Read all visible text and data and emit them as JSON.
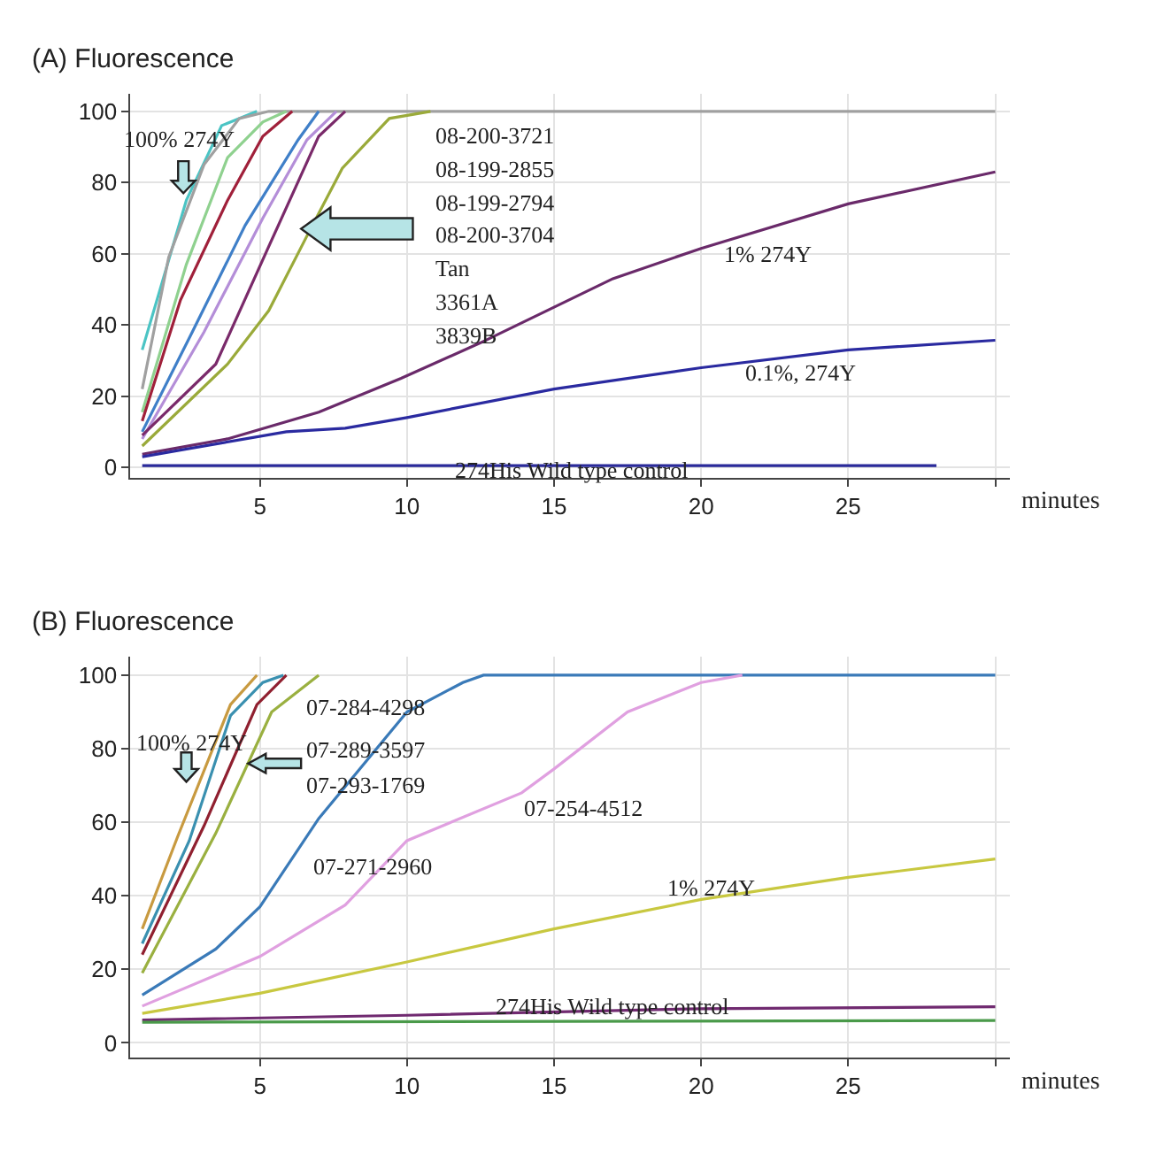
{
  "chart_data": [
    {
      "type": "line",
      "title": "(A) Fluorescence",
      "xlabel": "minutes",
      "xlim": [
        0.6,
        30.5
      ],
      "xticks": [
        5,
        10,
        15,
        20,
        25,
        {
          "value": 30,
          "label": null
        }
      ],
      "ylim": [
        -3,
        105
      ],
      "yticks": [
        0,
        20,
        40,
        60,
        80,
        100
      ],
      "grid": true,
      "series": [
        {
          "color": "#4bc4c4",
          "x": [
            1,
            2.5,
            3.7,
            4.9
          ],
          "values": [
            33,
            75,
            96,
            100
          ]
        },
        {
          "color": "#a0a0a0",
          "x": [
            1,
            1.9,
            3.1,
            4.3,
            5.3,
            30
          ],
          "values": [
            22,
            59,
            85,
            98,
            100,
            100
          ]
        },
        {
          "color": "#8fd18f",
          "x": [
            1,
            2.5,
            3.9,
            5.1,
            5.9
          ],
          "values": [
            15.5,
            57,
            87,
            97,
            100
          ]
        },
        {
          "color": "#a0203a",
          "x": [
            1,
            2.3,
            3.9,
            5.1,
            6.1
          ],
          "values": [
            13,
            47,
            75,
            93,
            100
          ]
        },
        {
          "color": "#3f7fc8",
          "x": [
            1,
            2.7,
            4.5,
            6.3,
            7
          ],
          "values": [
            10,
            38,
            68,
            92,
            100
          ]
        },
        {
          "color": "#b48ed8",
          "x": [
            1,
            3.1,
            5.1,
            6.6,
            7.6
          ],
          "values": [
            8,
            38,
            70,
            92,
            100
          ]
        },
        {
          "color": "#7a2a6a",
          "x": [
            1,
            3.5,
            5.3,
            7,
            7.9
          ],
          "values": [
            9,
            29,
            62,
            93,
            100
          ]
        },
        {
          "color": "#9aaa3a",
          "x": [
            1,
            3.9,
            5.3,
            6.6,
            7.8,
            9.4,
            10.8
          ],
          "values": [
            6,
            29,
            44,
            65,
            84,
            98,
            100
          ]
        },
        {
          "color": "#6a2a6a",
          "x": [
            1,
            3.9,
            7,
            9.8,
            12.5,
            15,
            17,
            20,
            25,
            30
          ],
          "values": [
            3.7,
            8,
            15.5,
            25,
            35,
            45,
            53,
            61.5,
            74,
            83
          ]
        },
        {
          "color": "#2a2aa0",
          "x": [
            1,
            5.9,
            7.9,
            10,
            15,
            20,
            25,
            30
          ],
          "values": [
            3,
            10,
            11,
            14,
            22,
            28,
            33,
            35.7
          ]
        },
        {
          "color": "#2a2a9a",
          "x": [
            1,
            28
          ],
          "values": [
            0.5,
            0.5
          ]
        }
      ],
      "annotations": [
        "100% 274Y",
        "08-200-3721",
        "08-199-2855",
        "08-199-2794",
        "08-200-3704",
        "Tan",
        "3361A",
        "3839B",
        "1% 274Y",
        "0.1%, 274Y",
        "274His Wild type control"
      ]
    },
    {
      "type": "line",
      "title": "(B) Fluorescence",
      "xlabel": "minutes",
      "xlim": [
        0.6,
        30.5
      ],
      "xticks": [
        5,
        10,
        15,
        20,
        25,
        {
          "value": 30,
          "label": null
        }
      ],
      "ylim": [
        -4,
        105
      ],
      "yticks": [
        0,
        20,
        40,
        60,
        80,
        100
      ],
      "grid": true,
      "series": [
        {
          "color": "#c89a40",
          "x": [
            1,
            2.2,
            4,
            4.9
          ],
          "values": [
            31,
            56,
            92,
            100
          ]
        },
        {
          "color": "#3a90b0",
          "x": [
            1,
            2.6,
            4,
            5.1,
            5.8
          ],
          "values": [
            27,
            55,
            89,
            98,
            100
          ]
        },
        {
          "color": "#902030",
          "x": [
            1,
            3.1,
            4.9,
            5.9
          ],
          "values": [
            24,
            59,
            92,
            100
          ]
        },
        {
          "color": "#9ab040",
          "x": [
            1,
            3.5,
            5.4,
            7
          ],
          "values": [
            19,
            57,
            90,
            100
          ]
        },
        {
          "color": "#3a7ab8",
          "x": [
            1,
            3.5,
            5,
            7,
            10,
            11.9,
            12.6,
            30
          ],
          "values": [
            13,
            25.5,
            37,
            61,
            90,
            98,
            100,
            100
          ]
        },
        {
          "color": "#e0a0e0",
          "x": [
            1,
            5,
            7.9,
            10,
            13.9,
            15,
            17.5,
            20,
            21.4
          ],
          "values": [
            10,
            23.5,
            37.5,
            55,
            68,
            74.5,
            90,
            98,
            100
          ]
        },
        {
          "color": "#c8c840",
          "x": [
            1,
            5,
            10,
            15,
            20,
            25,
            30
          ],
          "values": [
            8,
            13.5,
            22,
            31,
            39,
            45,
            50
          ]
        },
        {
          "color": "#702a70",
          "x": [
            1,
            10,
            20,
            30
          ],
          "values": [
            6.2,
            7.5,
            9.3,
            9.8
          ]
        },
        {
          "color": "#4a9a4a",
          "x": [
            1,
            30
          ],
          "values": [
            5.6,
            6.1
          ]
        }
      ],
      "annotations": [
        "100% 274Y",
        "07-284-4298",
        {
          "text": "07-289-3597",
          "x": 4.6,
          "y": 76
        },
        "07-293-1769",
        "07-271-2960",
        "07-254-4512",
        "1% 274Y",
        "274His Wild type control"
      ]
    }
  ]
}
